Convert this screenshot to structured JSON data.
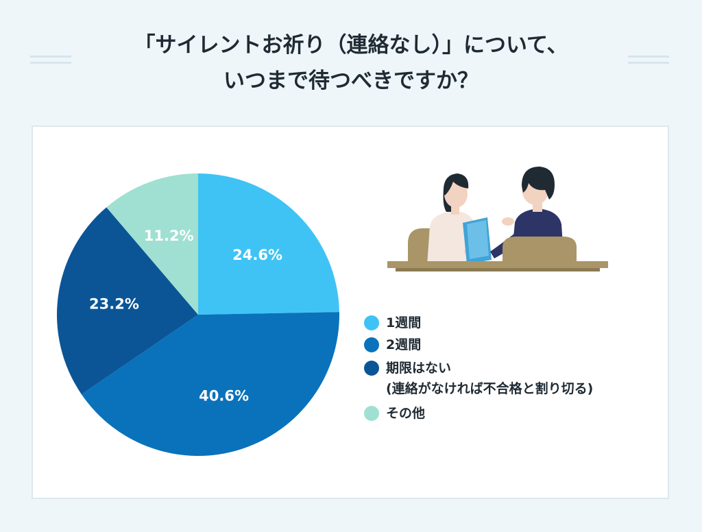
{
  "header": {
    "title_line1": "「サイレントお祈り（連絡なし）」について、",
    "title_line2": "いつまで待つべきですか？"
  },
  "chart_data": {
    "type": "pie",
    "title": "「サイレントお祈り（連絡なし）」について、いつまで待つべきですか？",
    "categories": [
      "1週間",
      "2週間",
      "期限はない(連絡がなければ不合格と割り切る)",
      "その他"
    ],
    "values": [
      24.6,
      40.6,
      23.2,
      11.2
    ],
    "unit": "%",
    "start_angle_deg": 0,
    "direction": "clockwise",
    "colors": [
      "#3fc3f5",
      "#0a72bb",
      "#0b5596",
      "#9fe0d2"
    ],
    "data_labels": [
      "24.6%",
      "40.6%",
      "23.2%",
      "11.2%"
    ],
    "legend_placement": "right"
  },
  "legend": {
    "items": [
      {
        "label": "1週間",
        "sub": "",
        "color": "#3fc3f5"
      },
      {
        "label": "2週間",
        "sub": "",
        "color": "#0a72bb"
      },
      {
        "label": "期限はない",
        "sub": "(連絡がなければ不合格と割り切る)",
        "color": "#0b5596"
      },
      {
        "label": "その他",
        "sub": "",
        "color": "#9fe0d2"
      }
    ]
  },
  "illustration": {
    "icon": "interview-illustration-icon"
  }
}
